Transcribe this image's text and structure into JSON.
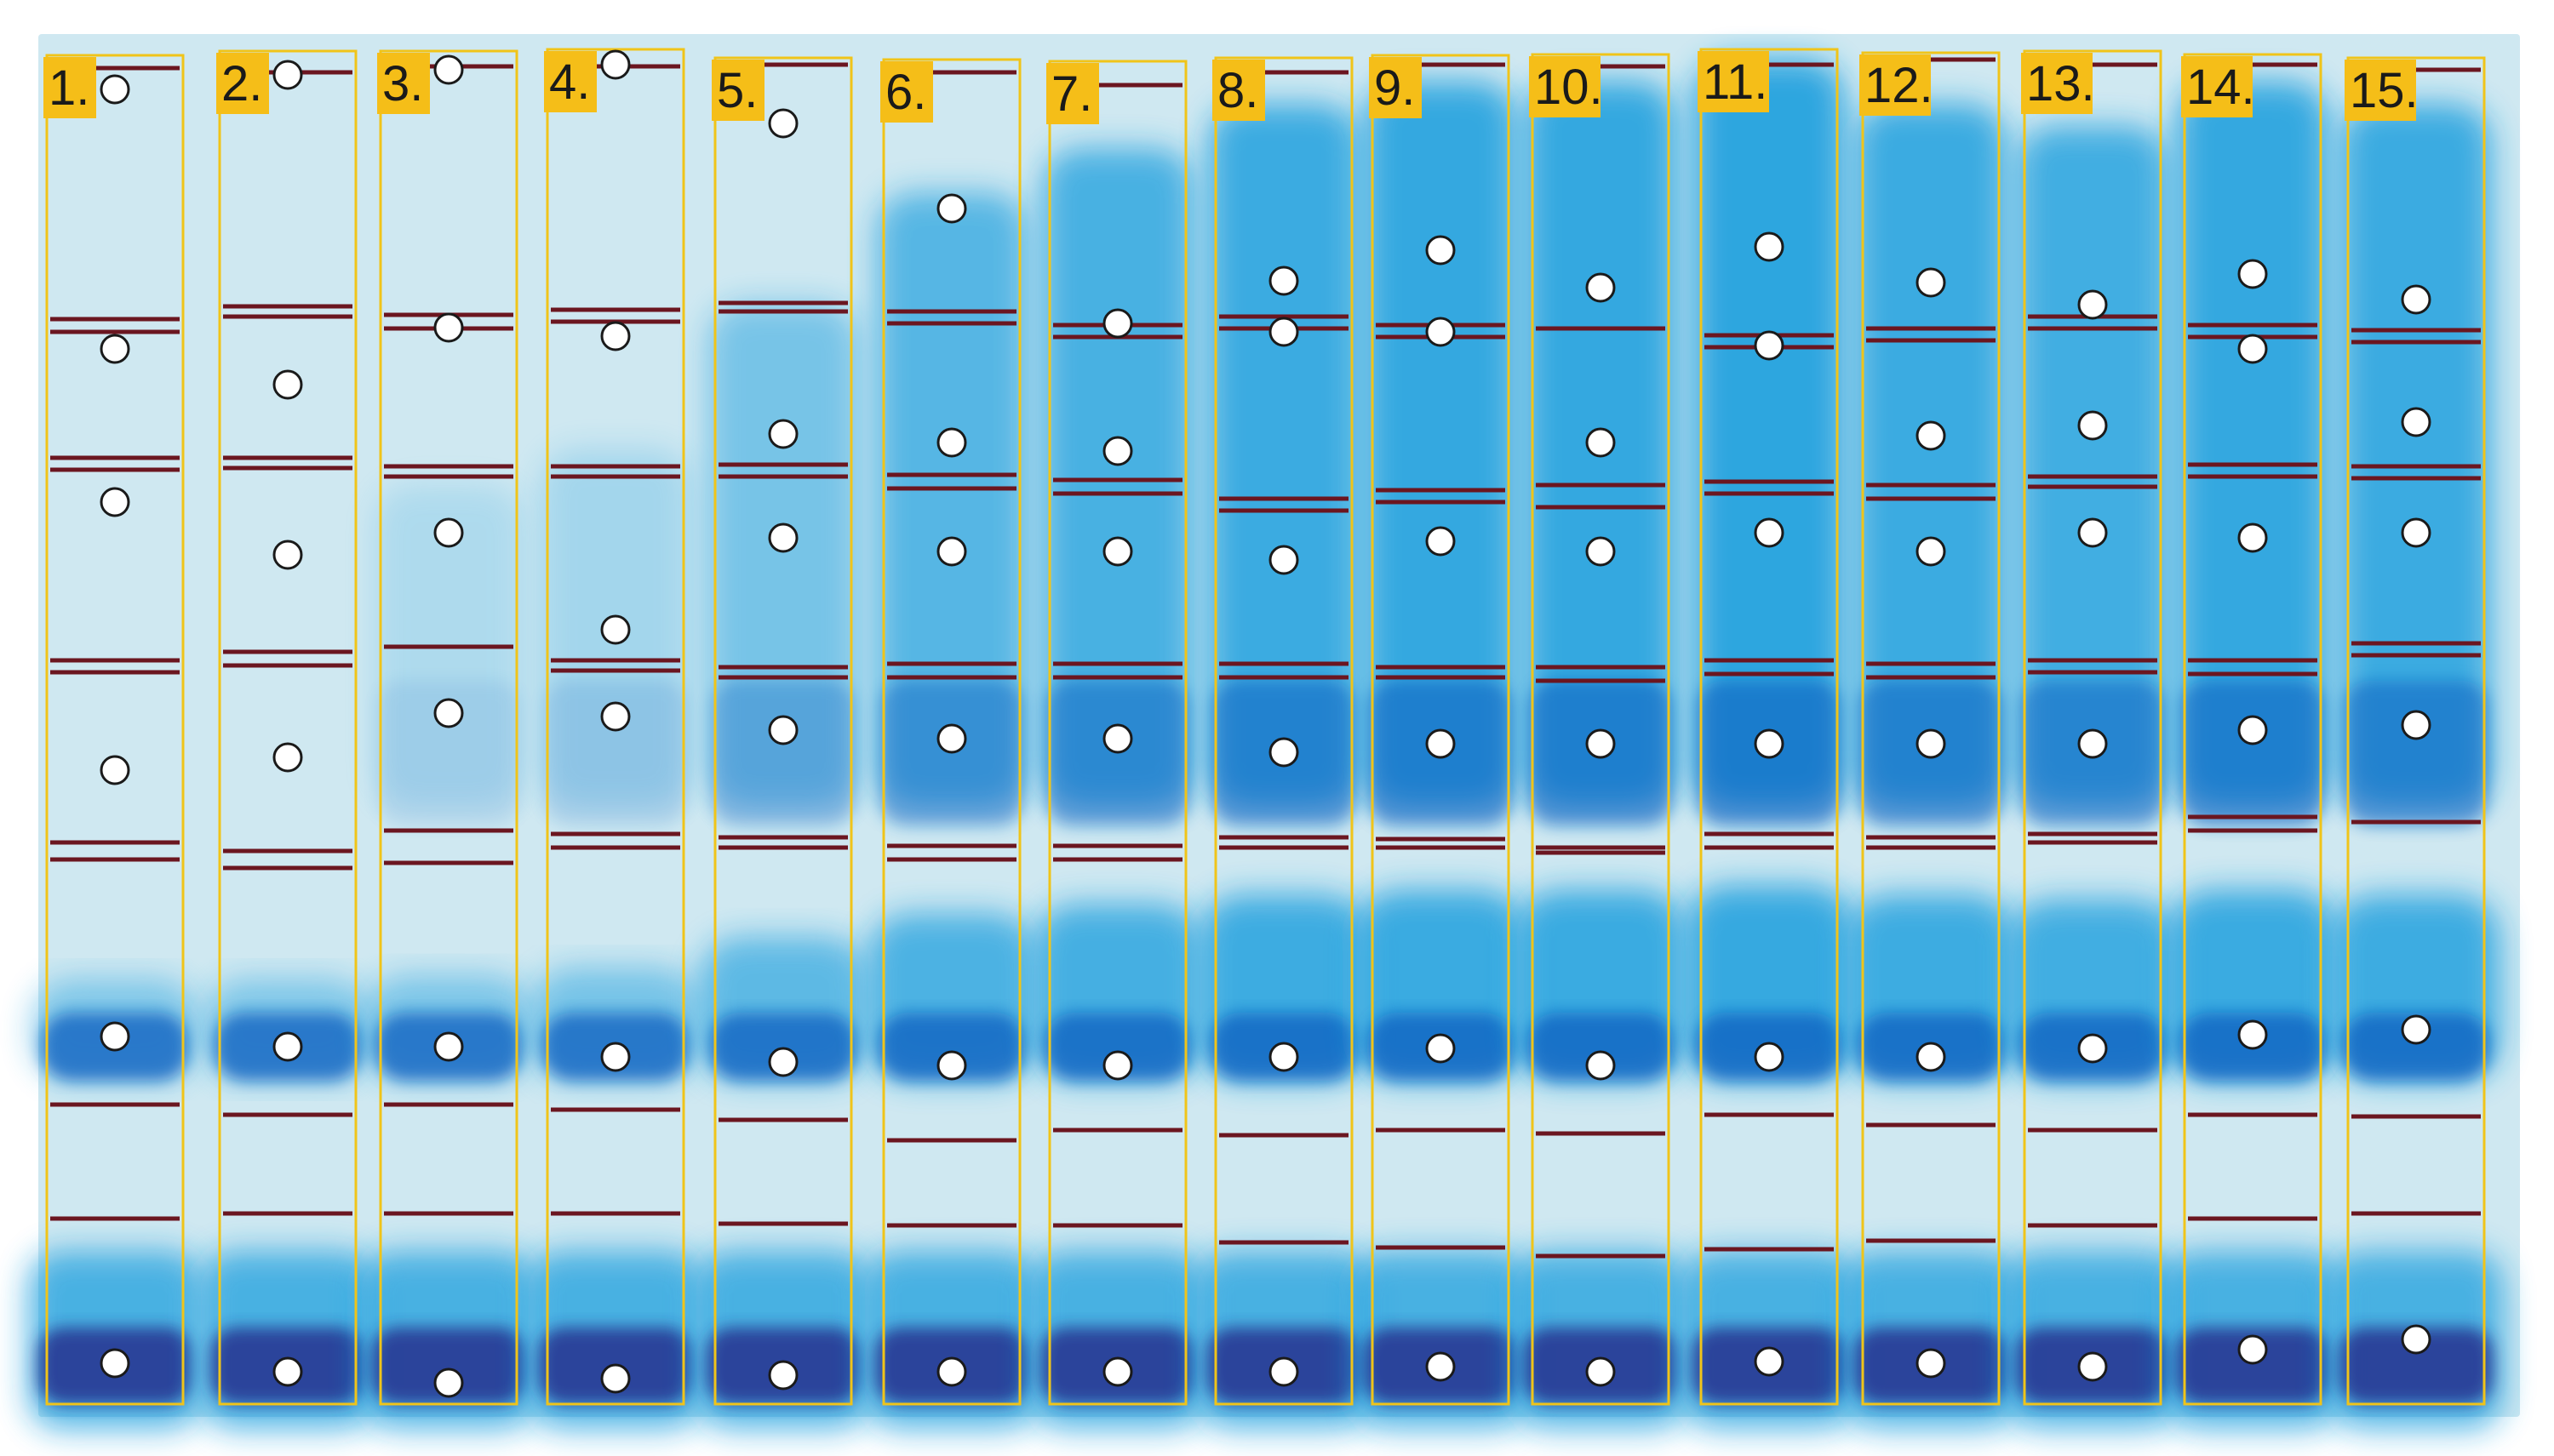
{
  "colors": {
    "gel_background": "#cfe8f1",
    "lane_outline": "#f0c419",
    "label_fill": "#f5be18",
    "label_text": "#1a1a1a",
    "band_line": "#6b1620",
    "stain_light": "#9fd3ea",
    "stain_mid": "#1e9fde",
    "stain_dark": "#0a5fc0",
    "front_dark": "#25338f",
    "marker_fill": "#ffffff",
    "marker_stroke": "#1a1a1a"
  },
  "lanes": [
    {
      "label": "1.",
      "intensity": 0.0
    },
    {
      "label": "2.",
      "intensity": 0.0
    },
    {
      "label": "3.",
      "intensity": 0.04
    },
    {
      "label": "4.",
      "intensity": 0.12
    },
    {
      "label": "5.",
      "intensity": 0.45
    },
    {
      "label": "6.",
      "intensity": 0.7
    },
    {
      "label": "7.",
      "intensity": 0.8
    },
    {
      "label": "8.",
      "intensity": 0.9
    },
    {
      "label": "9.",
      "intensity": 0.95
    },
    {
      "label": "10.",
      "intensity": 0.95
    },
    {
      "label": "11.",
      "intensity": 1.0
    },
    {
      "label": "12.",
      "intensity": 0.9
    },
    {
      "label": "13.",
      "intensity": 0.85
    },
    {
      "label": "14.",
      "intensity": 0.95
    },
    {
      "label": "15.",
      "intensity": 0.9
    }
  ]
}
